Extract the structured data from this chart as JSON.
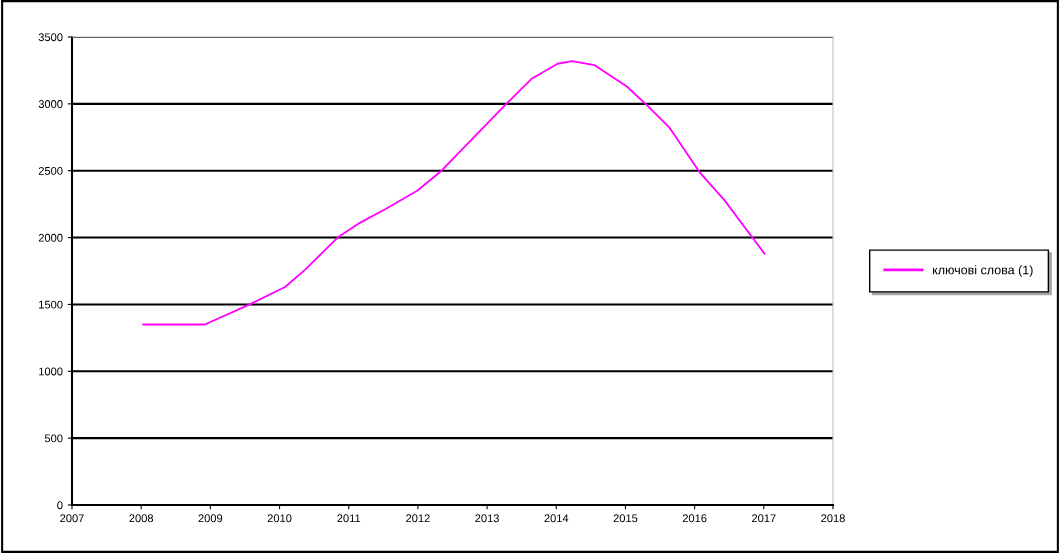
{
  "chart_data": {
    "type": "line",
    "x": [
      2008.03,
      2008.92,
      2009.57,
      2010.08,
      2010.37,
      2010.84,
      2011.16,
      2011.52,
      2011.99,
      2012.32,
      2013.26,
      2013.65,
      2014.02,
      2014.23,
      2014.55,
      2015.02,
      2015.31,
      2015.64,
      2016.07,
      2016.43,
      2017.01
    ],
    "series": [
      {
        "name": "ключові слова (1)",
        "color": "#ff00ff",
        "values": [
          1350,
          1350,
          1500,
          1630,
          1760,
          2000,
          2110,
          2210,
          2350,
          2490,
          2990,
          3190,
          3300,
          3320,
          3290,
          3130,
          2990,
          2820,
          2490,
          2280,
          1880
        ]
      }
    ],
    "xlim": [
      2007,
      2018
    ],
    "xticks": [
      2007,
      2008,
      2009,
      2010,
      2011,
      2012,
      2013,
      2014,
      2015,
      2016,
      2017,
      2018
    ],
    "ylim": [
      0,
      3500
    ],
    "yticks": [
      0,
      500,
      1000,
      1500,
      2000,
      2500,
      3000,
      3500
    ],
    "grid": "y",
    "legend": "right",
    "marker": "none",
    "line_style": "solid"
  }
}
